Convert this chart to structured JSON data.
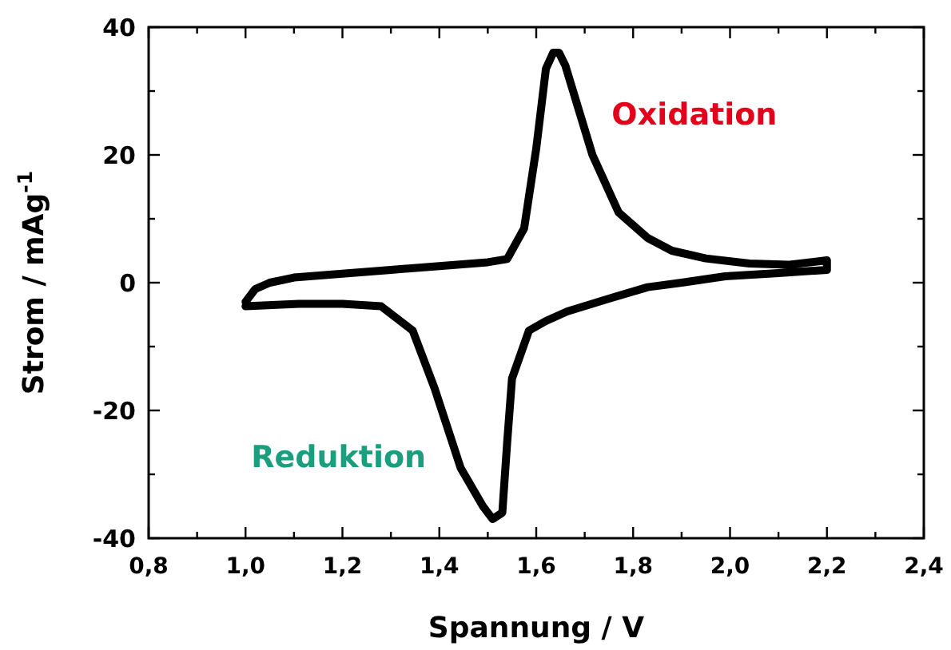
{
  "chart_data": {
    "type": "line",
    "xlabel": "Spannung / V",
    "ylabel": "Strom / mAg$^{-1}$",
    "xlim": [
      0.8,
      2.4
    ],
    "ylim": [
      -40,
      40
    ],
    "xticks": [
      {
        "value": 0.8,
        "label": "0,8"
      },
      {
        "value": 0.9,
        "label": null
      },
      {
        "value": 1.0,
        "label": "1,0"
      },
      {
        "value": 1.1,
        "label": null
      },
      {
        "value": 1.2,
        "label": "1,2"
      },
      {
        "value": 1.3,
        "label": null
      },
      {
        "value": 1.4,
        "label": "1,4"
      },
      {
        "value": 1.5,
        "label": null
      },
      {
        "value": 1.6,
        "label": "1,6"
      },
      {
        "value": 1.7,
        "label": null
      },
      {
        "value": 1.8,
        "label": "1,8"
      },
      {
        "value": 1.9,
        "label": null
      },
      {
        "value": 2.0,
        "label": "2,0"
      },
      {
        "value": 2.1,
        "label": null
      },
      {
        "value": 2.2,
        "label": "2,2"
      },
      {
        "value": 2.3,
        "label": null
      },
      {
        "value": 2.4,
        "label": "2,4"
      }
    ],
    "yticks": [
      -40,
      {
        "value": -30,
        "label": null
      },
      -20,
      {
        "value": -10,
        "label": null
      },
      0,
      {
        "value": 10,
        "label": null
      },
      20,
      {
        "value": 30,
        "label": null
      },
      40
    ],
    "grid": false,
    "marker": "none",
    "line_style": "solid",
    "series": [
      {
        "color": "#000000",
        "x": [
          1.0,
          1.02,
          1.05,
          1.1,
          1.2,
          1.3,
          1.4,
          1.5,
          1.54,
          1.575,
          1.6,
          1.62,
          1.635,
          1.647,
          1.66,
          1.68,
          1.716,
          1.77,
          1.83,
          1.88,
          1.95,
          2.04,
          2.12,
          2.2,
          2.2,
          2.1,
          1.99,
          1.9,
          1.83,
          1.75,
          1.664,
          1.62,
          1.585,
          1.55,
          1.54,
          1.53,
          1.51,
          1.49,
          1.444,
          1.39,
          1.345,
          1.28,
          1.2,
          1.11,
          1.0
        ],
        "values": [
          -3,
          -1,
          0,
          0.8,
          1.4,
          2.0,
          2.6,
          3.2,
          3.7,
          8.5,
          21,
          33.5,
          36,
          36,
          34,
          29,
          20,
          11,
          7,
          5,
          3.8,
          3,
          2.8,
          3.5,
          2,
          1.5,
          1,
          0,
          -0.7,
          -2.5,
          -4.5,
          -6,
          -7.5,
          -15,
          -25,
          -36,
          -37,
          -35,
          -29,
          -16.5,
          -7.5,
          -3.7,
          -3.3,
          -3.3,
          -3.7
        ]
      }
    ],
    "annotations": [
      "Oxidation",
      "Reduktion"
    ]
  }
}
